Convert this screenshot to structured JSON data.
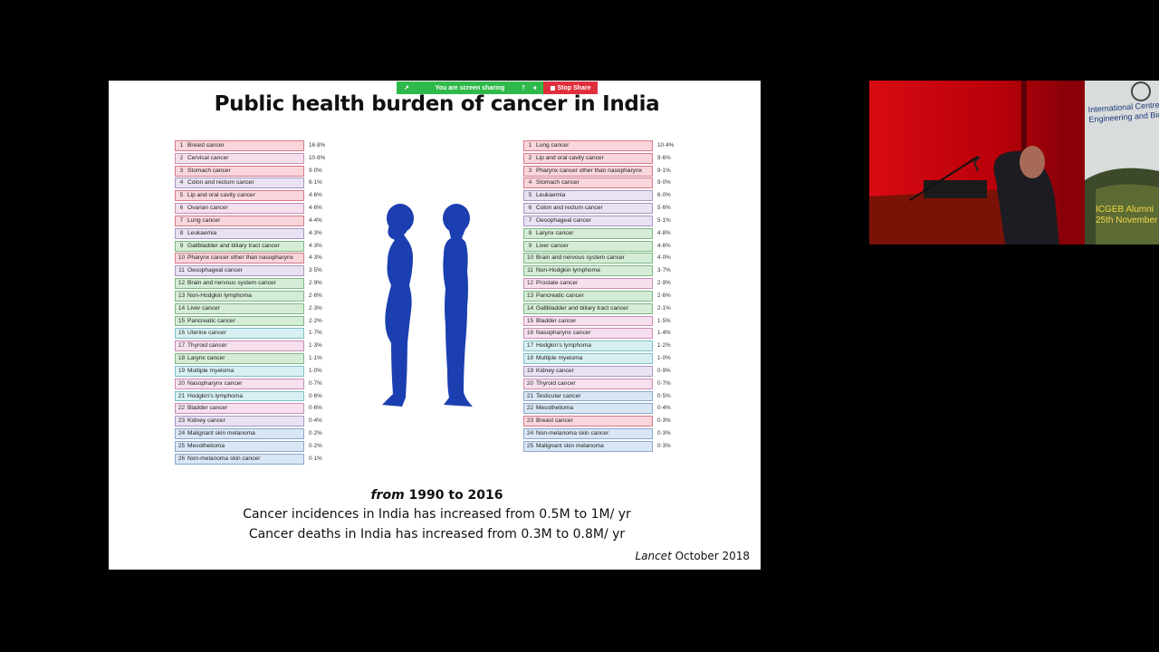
{
  "share_bar": {
    "sharing_text": "You are screen sharing",
    "stop_label": "Stop Share",
    "icons": [
      "pin-icon",
      "mic-icon",
      "shield-icon",
      "stop-icon"
    ]
  },
  "slide": {
    "title": "Public health burden of cancer in India",
    "caption_from": "from",
    "caption_years": "1990 to 2016",
    "caption_line2": "Cancer incidences in India has increased from 0.5M to 1M/ yr",
    "caption_line3": "Cancer deaths in India has increased from 0.3M to 0.8M/ yr",
    "source_journal": "Lancet",
    "source_date": "October 2018"
  },
  "female_list": [
    {
      "rank": "1",
      "name": "Breast cancer",
      "pct": "16·8%",
      "color": "red"
    },
    {
      "rank": "2",
      "name": "Cervical cancer",
      "pct": "10·8%",
      "color": "pink"
    },
    {
      "rank": "3",
      "name": "Stomach cancer",
      "pct": "9·0%",
      "color": "red"
    },
    {
      "rank": "4",
      "name": "Colon and rectum cancer",
      "pct": "6·1%",
      "color": "lav"
    },
    {
      "rank": "5",
      "name": "Lip and oral cavity cancer",
      "pct": "4·6%",
      "color": "red"
    },
    {
      "rank": "6",
      "name": "Ovarian cancer",
      "pct": "4·6%",
      "color": "pink"
    },
    {
      "rank": "7",
      "name": "Lung cancer",
      "pct": "4·4%",
      "color": "red"
    },
    {
      "rank": "8",
      "name": "Leukaemia",
      "pct": "4·3%",
      "color": "lav"
    },
    {
      "rank": "9",
      "name": "Gallbladder and biliary tract cancer",
      "pct": "4·3%",
      "color": "green"
    },
    {
      "rank": "10",
      "name": "Pharynx cancer other than nasopharynx",
      "pct": "4·3%",
      "color": "red"
    },
    {
      "rank": "11",
      "name": "Oesophageal cancer",
      "pct": "3·5%",
      "color": "lav"
    },
    {
      "rank": "12",
      "name": "Brain and nervous system cancer",
      "pct": "2·9%",
      "color": "green"
    },
    {
      "rank": "13",
      "name": "Non-Hodgkin lymphoma",
      "pct": "2·6%",
      "color": "green"
    },
    {
      "rank": "14",
      "name": "Liver cancer",
      "pct": "2·3%",
      "color": "green"
    },
    {
      "rank": "15",
      "name": "Pancreatic cancer",
      "pct": "2·2%",
      "color": "green"
    },
    {
      "rank": "16",
      "name": "Uterine cancer",
      "pct": "1·7%",
      "color": "cyan"
    },
    {
      "rank": "17",
      "name": "Thyroid cancer",
      "pct": "1·3%",
      "color": "pink"
    },
    {
      "rank": "18",
      "name": "Larynx cancer",
      "pct": "1·1%",
      "color": "green"
    },
    {
      "rank": "19",
      "name": "Multiple myeloma",
      "pct": "1·0%",
      "color": "cyan"
    },
    {
      "rank": "20",
      "name": "Nasopharynx cancer",
      "pct": "0·7%",
      "color": "pink"
    },
    {
      "rank": "21",
      "name": "Hodgkin's lymphoma",
      "pct": "0·6%",
      "color": "cyan"
    },
    {
      "rank": "22",
      "name": "Bladder cancer",
      "pct": "0·6%",
      "color": "pink"
    },
    {
      "rank": "23",
      "name": "Kidney cancer",
      "pct": "0·4%",
      "color": "lav"
    },
    {
      "rank": "24",
      "name": "Malignant skin melanoma",
      "pct": "0·2%",
      "color": "blue"
    },
    {
      "rank": "25",
      "name": "Mesothelioma",
      "pct": "0·2%",
      "color": "blue"
    },
    {
      "rank": "26",
      "name": "Non-melanoma skin cancer",
      "pct": "0·1%",
      "color": "blue"
    }
  ],
  "male_list": [
    {
      "rank": "1",
      "name": "Lung cancer",
      "pct": "10·4%",
      "color": "red"
    },
    {
      "rank": "2",
      "name": "Lip and oral cavity cancer",
      "pct": "9·6%",
      "color": "red"
    },
    {
      "rank": "3",
      "name": "Pharynx cancer other than nasopharynx",
      "pct": "9·1%",
      "color": "red"
    },
    {
      "rank": "4",
      "name": "Stomach cancer",
      "pct": "9·0%",
      "color": "red"
    },
    {
      "rank": "5",
      "name": "Leukaemia",
      "pct": "6·0%",
      "color": "lav"
    },
    {
      "rank": "6",
      "name": "Colon and rectum cancer",
      "pct": "5·6%",
      "color": "lav"
    },
    {
      "rank": "7",
      "name": "Oesophageal cancer",
      "pct": "5·1%",
      "color": "lav"
    },
    {
      "rank": "8",
      "name": "Larynx cancer",
      "pct": "4·8%",
      "color": "green"
    },
    {
      "rank": "9",
      "name": "Liver cancer",
      "pct": "4·6%",
      "color": "green"
    },
    {
      "rank": "10",
      "name": "Brain and nervous system cancer",
      "pct": "4·0%",
      "color": "green"
    },
    {
      "rank": "11",
      "name": "Non-Hodgkin lymphoma",
      "pct": "3·7%",
      "color": "green"
    },
    {
      "rank": "12",
      "name": "Prostate cancer",
      "pct": "2·9%",
      "color": "pink"
    },
    {
      "rank": "13",
      "name": "Pancreatic cancer",
      "pct": "2·6%",
      "color": "green"
    },
    {
      "rank": "14",
      "name": "Gallbladder and biliary tract cancer",
      "pct": "2·1%",
      "color": "green"
    },
    {
      "rank": "15",
      "name": "Bladder cancer",
      "pct": "1·5%",
      "color": "pink"
    },
    {
      "rank": "16",
      "name": "Nasopharynx cancer",
      "pct": "1·4%",
      "color": "pink"
    },
    {
      "rank": "17",
      "name": "Hodgkin's lymphoma",
      "pct": "1·2%",
      "color": "cyan"
    },
    {
      "rank": "18",
      "name": "Multiple myeloma",
      "pct": "1·0%",
      "color": "cyan"
    },
    {
      "rank": "19",
      "name": "Kidney cancer",
      "pct": "0·9%",
      "color": "lav"
    },
    {
      "rank": "20",
      "name": "Thyroid cancer",
      "pct": "0·7%",
      "color": "pink"
    },
    {
      "rank": "21",
      "name": "Testicular cancer",
      "pct": "0·5%",
      "color": "blue"
    },
    {
      "rank": "22",
      "name": "Mesothelioma",
      "pct": "0·4%",
      "color": "blue"
    },
    {
      "rank": "23",
      "name": "Breast cancer",
      "pct": "0·3%",
      "color": "red"
    },
    {
      "rank": "24",
      "name": "Non-melanoma skin cancer",
      "pct": "0·3%",
      "color": "blue"
    },
    {
      "rank": "25",
      "name": "Malignant skin melanoma",
      "pct": "0·3%",
      "color": "blue"
    }
  ],
  "video": {
    "banner_line1": "International Centre fo",
    "banner_line2": "Engineering and Biote",
    "banner_line3": "ICGEB Alumni",
    "banner_line4": "25th November"
  },
  "colors": {
    "figure_blue": "#1b3fb0",
    "share_green": "#2fb94a",
    "share_red": "#e02f3c",
    "video_red": "#c2000a"
  }
}
